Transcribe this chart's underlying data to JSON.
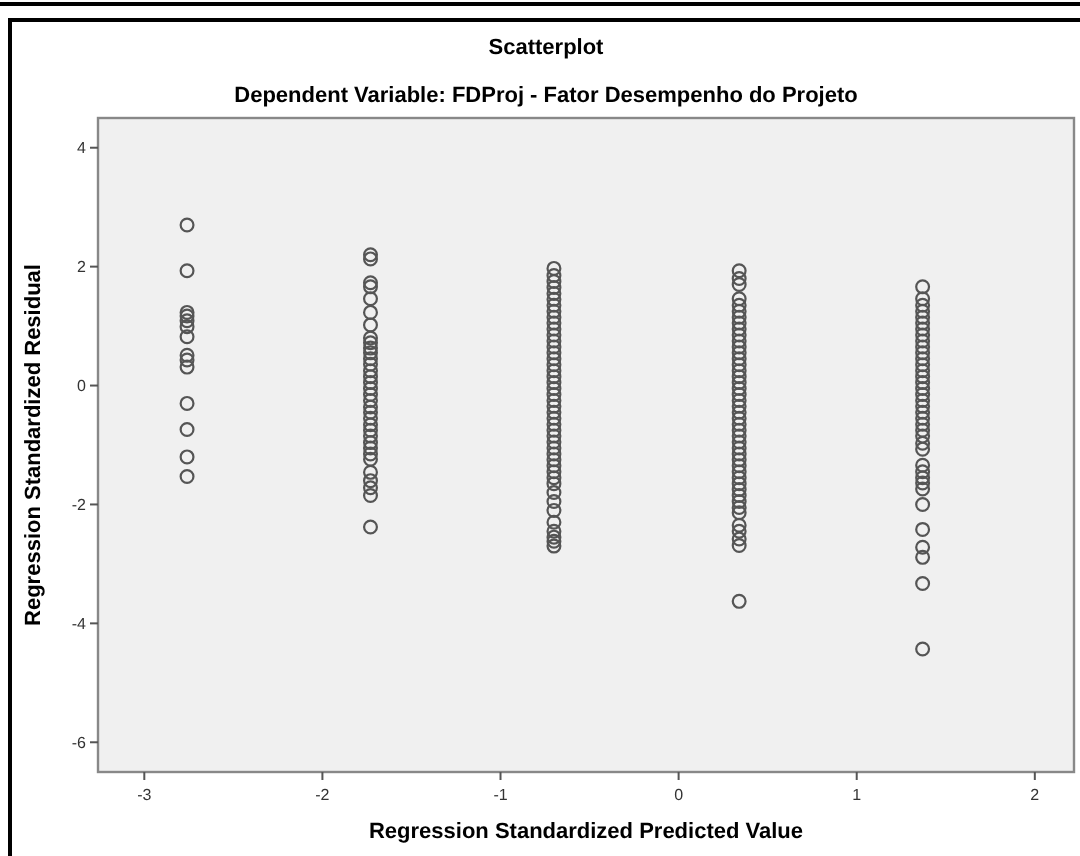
{
  "chart_data": {
    "type": "scatter",
    "title": "Scatterplot",
    "subtitle": "Dependent Variable: FDProj - Fator Desempenho do Projeto",
    "xlabel": "Regression Standardized Predicted Value",
    "ylabel": "Regression Standardized Residual",
    "xlim": [
      -3.26,
      2.22
    ],
    "ylim": [
      -6.5,
      4.5
    ],
    "xticks": [
      -3,
      -2,
      -1,
      0,
      1,
      2
    ],
    "yticks": [
      -6,
      -4,
      -2,
      0,
      2,
      4
    ],
    "grid": false,
    "marker": "circle",
    "series": [
      {
        "color": "#555555",
        "x": [
          -2.76,
          -2.76,
          -2.76,
          -2.76,
          -2.76,
          -2.76,
          -2.76,
          -2.76,
          -2.76,
          -2.76,
          -2.76,
          -2.76,
          -2.76,
          -2.76
        ],
        "values": [
          2.7,
          1.93,
          1.23,
          1.17,
          1.09,
          0.99,
          0.82,
          0.51,
          0.43,
          0.31,
          -0.3,
          -0.74,
          -1.2,
          -1.53
        ]
      },
      {
        "color": "#555555",
        "x": [
          -1.73,
          -1.73,
          -1.73,
          -1.73,
          -1.73,
          -1.73,
          -1.73,
          -1.73,
          -1.73,
          -1.73,
          -1.73,
          -1.73,
          -1.73,
          -1.73,
          -1.73,
          -1.73,
          -1.73,
          -1.73,
          -1.73,
          -1.73,
          -1.73,
          -1.73,
          -1.73,
          -1.73,
          -1.73,
          -1.73,
          -1.73,
          -1.73,
          -1.73,
          -1.73,
          -1.73,
          -1.73,
          -1.73,
          -1.73
        ],
        "values": [
          2.2,
          2.13,
          1.73,
          1.66,
          1.46,
          1.23,
          1.02,
          0.8,
          0.72,
          0.63,
          0.55,
          0.45,
          0.36,
          0.25,
          0.15,
          0.05,
          -0.05,
          -0.15,
          -0.25,
          -0.36,
          -0.45,
          -0.55,
          -0.66,
          -0.75,
          -0.85,
          -0.96,
          -1.05,
          -1.15,
          -1.24,
          -1.46,
          -1.6,
          -1.72,
          -1.85,
          -2.38
        ]
      },
      {
        "color": "#555555",
        "x": [
          -0.7,
          -0.7,
          -0.7,
          -0.7,
          -0.7,
          -0.7,
          -0.7,
          -0.7,
          -0.7,
          -0.7,
          -0.7,
          -0.7,
          -0.7,
          -0.7,
          -0.7,
          -0.7,
          -0.7,
          -0.7,
          -0.7,
          -0.7,
          -0.7,
          -0.7,
          -0.7,
          -0.7,
          -0.7,
          -0.7,
          -0.7,
          -0.7,
          -0.7,
          -0.7,
          -0.7,
          -0.7,
          -0.7,
          -0.7,
          -0.7,
          -0.7,
          -0.7,
          -0.7,
          -0.7,
          -0.7,
          -0.7,
          -0.7,
          -0.7,
          -0.7,
          -0.7
        ],
        "values": [
          1.97,
          1.85,
          1.75,
          1.65,
          1.55,
          1.45,
          1.35,
          1.25,
          1.15,
          1.05,
          0.95,
          0.85,
          0.75,
          0.65,
          0.55,
          0.45,
          0.35,
          0.25,
          0.15,
          0.05,
          -0.05,
          -0.15,
          -0.25,
          -0.35,
          -0.45,
          -0.55,
          -0.65,
          -0.75,
          -0.85,
          -0.95,
          -1.05,
          -1.15,
          -1.25,
          -1.35,
          -1.45,
          -1.55,
          -1.65,
          -1.8,
          -1.95,
          -2.1,
          -2.3,
          -2.45,
          -2.55,
          -2.62,
          -2.7
        ]
      },
      {
        "color": "#555555",
        "x": [
          0.34,
          0.34,
          0.34,
          0.34,
          0.34,
          0.34,
          0.34,
          0.34,
          0.34,
          0.34,
          0.34,
          0.34,
          0.34,
          0.34,
          0.34,
          0.34,
          0.34,
          0.34,
          0.34,
          0.34,
          0.34,
          0.34,
          0.34,
          0.34,
          0.34,
          0.34,
          0.34,
          0.34,
          0.34,
          0.34,
          0.34,
          0.34,
          0.34,
          0.34,
          0.34,
          0.34,
          0.34,
          0.34,
          0.34,
          0.34,
          0.34,
          0.34,
          0.34,
          0.34,
          0.34
        ],
        "values": [
          1.93,
          1.8,
          1.7,
          1.46,
          1.35,
          1.25,
          1.15,
          1.05,
          0.95,
          0.85,
          0.75,
          0.65,
          0.55,
          0.45,
          0.35,
          0.25,
          0.15,
          0.05,
          -0.05,
          -0.15,
          -0.25,
          -0.35,
          -0.45,
          -0.55,
          -0.65,
          -0.75,
          -0.85,
          -0.95,
          -1.05,
          -1.15,
          -1.25,
          -1.35,
          -1.45,
          -1.55,
          -1.65,
          -1.75,
          -1.85,
          -1.95,
          -2.05,
          -2.14,
          -2.35,
          -2.45,
          -2.58,
          -2.69,
          -3.63
        ]
      },
      {
        "color": "#555555",
        "x": [
          1.37,
          1.37,
          1.37,
          1.37,
          1.37,
          1.37,
          1.37,
          1.37,
          1.37,
          1.37,
          1.37,
          1.37,
          1.37,
          1.37,
          1.37,
          1.37,
          1.37,
          1.37,
          1.37,
          1.37,
          1.37,
          1.37,
          1.37,
          1.37,
          1.37,
          1.37,
          1.37,
          1.37,
          1.37,
          1.37,
          1.37,
          1.37,
          1.37,
          1.37,
          1.37,
          1.37,
          1.37,
          1.37
        ],
        "values": [
          1.66,
          1.46,
          1.35,
          1.25,
          1.15,
          1.05,
          0.95,
          0.85,
          0.75,
          0.65,
          0.55,
          0.45,
          0.35,
          0.25,
          0.15,
          0.05,
          -0.05,
          -0.15,
          -0.25,
          -0.35,
          -0.45,
          -0.55,
          -0.65,
          -0.75,
          -0.85,
          -0.97,
          -1.07,
          -1.34,
          -1.45,
          -1.55,
          -1.64,
          -1.74,
          -2.0,
          -2.42,
          -2.72,
          -2.89,
          -3.33,
          -4.43
        ]
      }
    ]
  }
}
